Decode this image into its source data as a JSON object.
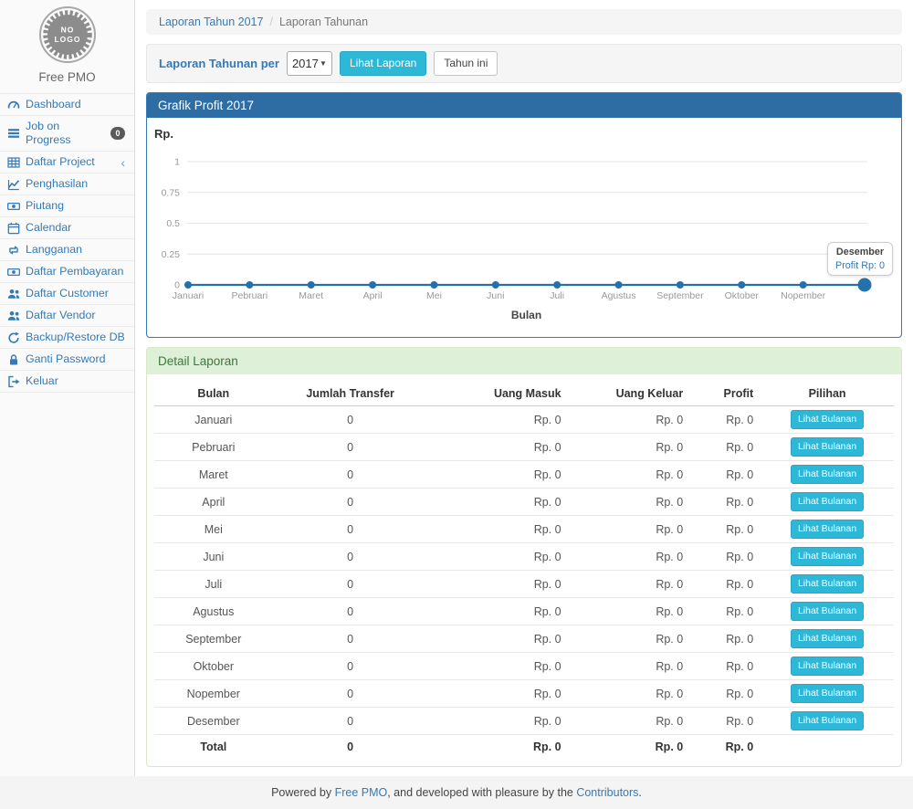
{
  "app": {
    "name": "Free PMO",
    "logo_line1": "NO",
    "logo_line2": "LOGO"
  },
  "colors": {
    "link_blue": "#337ab7",
    "panel_primary_heading": "#2e6da4",
    "button_cyan": "#2eb8d8",
    "success_heading_bg": "#dff0d8",
    "success_heading_text": "#3c763d",
    "chart_line": "#2471ab",
    "grid_line": "#e4e4e4",
    "tick_text": "#999999",
    "badge_bg": "#5a5a5a"
  },
  "sidebar": {
    "items": [
      {
        "icon": "dashboard-icon",
        "label": "Dashboard"
      },
      {
        "icon": "tasks-icon",
        "label": "Job on Progress",
        "badge": "0"
      },
      {
        "icon": "table-icon",
        "label": "Daftar Project",
        "chevron": "‹"
      },
      {
        "icon": "line-chart-icon",
        "label": "Penghasilan"
      },
      {
        "icon": "money-icon",
        "label": "Piutang"
      },
      {
        "icon": "calendar-icon",
        "label": "Calendar"
      },
      {
        "icon": "retweet-icon",
        "label": "Langganan"
      },
      {
        "icon": "money-icon",
        "label": "Daftar Pembayaran"
      },
      {
        "icon": "users-icon",
        "label": "Daftar Customer"
      },
      {
        "icon": "users-icon",
        "label": "Daftar Vendor"
      },
      {
        "icon": "refresh-icon",
        "label": "Backup/Restore DB"
      },
      {
        "icon": "lock-icon",
        "label": "Ganti Password"
      },
      {
        "icon": "signout-icon",
        "label": "Keluar"
      }
    ]
  },
  "breadcrumb": {
    "link": "Laporan Tahun 2017",
    "separator": "/",
    "current": "Laporan Tahunan"
  },
  "report_form": {
    "label": "Laporan Tahunan per",
    "year": "2017",
    "submit_label": "Lihat Laporan",
    "this_year_label": "Tahun ini"
  },
  "chart_data": {
    "type": "line",
    "title": "Grafik Profit 2017",
    "ylabel": "Rp.",
    "xlabel": "Bulan",
    "ylim": [
      0,
      1
    ],
    "yticks": [
      0,
      0.25,
      0.5,
      0.75,
      1
    ],
    "x": [
      "Januari",
      "Pebruari",
      "Maret",
      "April",
      "Mei",
      "Juni",
      "Juli",
      "Agustus",
      "September",
      "Oktober",
      "Nopember",
      "Desember"
    ],
    "series": [
      {
        "name": "Profit",
        "values": [
          0,
          0,
          0,
          0,
          0,
          0,
          0,
          0,
          0,
          0,
          0,
          0
        ]
      }
    ],
    "grid": true,
    "legend": "none",
    "last_x_tick_label_hidden": true,
    "tooltip": {
      "title": "Desember",
      "value": "Profit Rp: 0"
    }
  },
  "detail": {
    "heading": "Detail Laporan",
    "columns": [
      {
        "label": "Bulan",
        "align": "c",
        "width": "16%"
      },
      {
        "label": "Jumlah Transfer",
        "align": "c",
        "width": "21%"
      },
      {
        "label": "Uang Masuk",
        "align": "r",
        "width": "19%"
      },
      {
        "label": "Uang Keluar",
        "align": "r",
        "width": "16.5%"
      },
      {
        "label": "Profit",
        "align": "r",
        "width": "9.5%"
      },
      {
        "label": "Pilihan",
        "align": "c",
        "width": "18%"
      }
    ],
    "action_label": "Lihat Bulanan",
    "rows": [
      {
        "bulan": "Januari",
        "jumlah_transfer": "0",
        "uang_masuk": "Rp. 0",
        "uang_keluar": "Rp. 0",
        "profit": "Rp. 0"
      },
      {
        "bulan": "Pebruari",
        "jumlah_transfer": "0",
        "uang_masuk": "Rp. 0",
        "uang_keluar": "Rp. 0",
        "profit": "Rp. 0"
      },
      {
        "bulan": "Maret",
        "jumlah_transfer": "0",
        "uang_masuk": "Rp. 0",
        "uang_keluar": "Rp. 0",
        "profit": "Rp. 0"
      },
      {
        "bulan": "April",
        "jumlah_transfer": "0",
        "uang_masuk": "Rp. 0",
        "uang_keluar": "Rp. 0",
        "profit": "Rp. 0"
      },
      {
        "bulan": "Mei",
        "jumlah_transfer": "0",
        "uang_masuk": "Rp. 0",
        "uang_keluar": "Rp. 0",
        "profit": "Rp. 0"
      },
      {
        "bulan": "Juni",
        "jumlah_transfer": "0",
        "uang_masuk": "Rp. 0",
        "uang_keluar": "Rp. 0",
        "profit": "Rp. 0"
      },
      {
        "bulan": "Juli",
        "jumlah_transfer": "0",
        "uang_masuk": "Rp. 0",
        "uang_keluar": "Rp. 0",
        "profit": "Rp. 0"
      },
      {
        "bulan": "Agustus",
        "jumlah_transfer": "0",
        "uang_masuk": "Rp. 0",
        "uang_keluar": "Rp. 0",
        "profit": "Rp. 0"
      },
      {
        "bulan": "September",
        "jumlah_transfer": "0",
        "uang_masuk": "Rp. 0",
        "uang_keluar": "Rp. 0",
        "profit": "Rp. 0"
      },
      {
        "bulan": "Oktober",
        "jumlah_transfer": "0",
        "uang_masuk": "Rp. 0",
        "uang_keluar": "Rp. 0",
        "profit": "Rp. 0"
      },
      {
        "bulan": "Nopember",
        "jumlah_transfer": "0",
        "uang_masuk": "Rp. 0",
        "uang_keluar": "Rp. 0",
        "profit": "Rp. 0"
      },
      {
        "bulan": "Desember",
        "jumlah_transfer": "0",
        "uang_masuk": "Rp. 0",
        "uang_keluar": "Rp. 0",
        "profit": "Rp. 0"
      }
    ],
    "total": {
      "bulan": "Total",
      "jumlah_transfer": "0",
      "uang_masuk": "Rp. 0",
      "uang_keluar": "Rp. 0",
      "profit": "Rp. 0"
    }
  },
  "footer": {
    "parts": [
      {
        "text": "Powered by "
      },
      {
        "link": "Free PMO"
      },
      {
        "text": ", and developed with pleasure by the "
      },
      {
        "link": "Contributors"
      },
      {
        "text": "."
      }
    ]
  }
}
